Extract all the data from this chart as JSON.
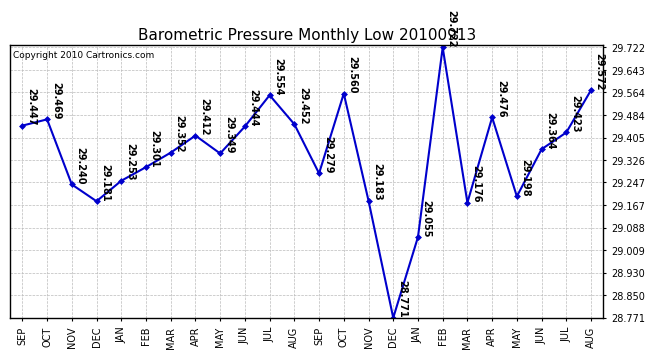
{
  "title": "Barometric Pressure Monthly Low 20100913",
  "copyright": "Copyright 2010 Cartronics.com",
  "categories": [
    "SEP",
    "OCT",
    "NOV",
    "DEC",
    "JAN",
    "FEB",
    "MAR",
    "APR",
    "MAY",
    "JUN",
    "JUL",
    "AUG",
    "SEP",
    "OCT",
    "NOV",
    "DEC",
    "JAN",
    "FEB",
    "MAR",
    "APR",
    "MAY",
    "JUN",
    "JUL",
    "AUG"
  ],
  "values": [
    29.447,
    29.469,
    29.24,
    29.181,
    29.253,
    29.301,
    29.352,
    29.412,
    29.349,
    29.444,
    29.554,
    29.452,
    29.279,
    29.56,
    29.183,
    28.771,
    29.055,
    29.722,
    29.176,
    29.476,
    29.198,
    29.364,
    29.423,
    29.572
  ],
  "line_color": "#0000cc",
  "marker_color": "#0000cc",
  "bg_color": "#ffffff",
  "grid_color": "#bbbbbb",
  "title_fontsize": 11,
  "tick_fontsize": 7,
  "annot_fontsize": 7,
  "ylim_min": 28.771,
  "ylim_max": 29.722,
  "yticks": [
    28.771,
    28.85,
    28.93,
    29.009,
    29.088,
    29.167,
    29.247,
    29.326,
    29.405,
    29.484,
    29.564,
    29.643,
    29.722
  ]
}
